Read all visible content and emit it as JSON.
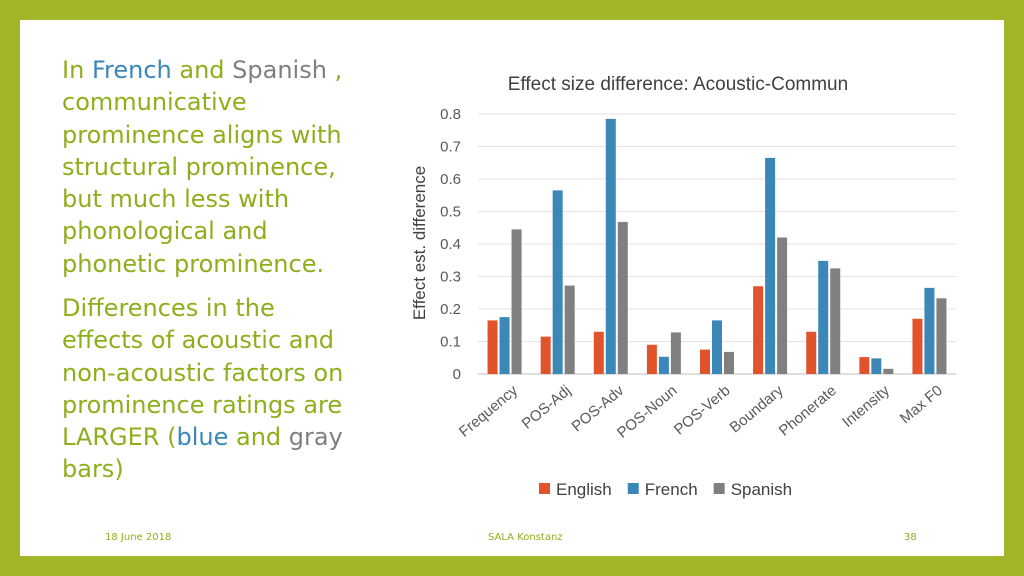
{
  "text": {
    "p1_in": "In",
    "p1_french": "French",
    "p1_and": "and",
    "p1_spanish": "Spanish",
    "p1_comma": ",",
    "p1_rest": "communicative prominence aligns with structural prominence, but much less with phonological and phonetic prominence.",
    "p2_main": "Differences in the effects of acoustic and non-acoustic factors on prominence ratings are LARGER (",
    "p2_blue": "blue",
    "p2_and": "and",
    "p2_gray": "gray",
    "p2_end": "bars)"
  },
  "footer": {
    "date": "18 June  2018",
    "center": "SALA Konstanz",
    "page": "38"
  },
  "colors": {
    "slide_border": "#a2b627",
    "text_green": "#8fae1b",
    "english": "#e0532b",
    "french": "#3a87b8",
    "spanish": "#808080"
  },
  "chart_data": {
    "type": "bar",
    "title": "Effect size difference: Acoustic-Commun",
    "xlabel": "",
    "ylabel": "Effect est. difference",
    "ylim": [
      0,
      0.8
    ],
    "yticks": [
      "0",
      "0.1",
      "0.2",
      "0.3",
      "0.4",
      "0.5",
      "0.6",
      "0.7",
      "0.8"
    ],
    "grid": true,
    "legend_position": "bottom",
    "categories": [
      "Frequency",
      "POS-Adj",
      "POS-Adv",
      "POS-Noun",
      "POS-Verb",
      "Boundary",
      "Phonerate",
      "Intensity",
      "Max F0"
    ],
    "series": [
      {
        "name": "English",
        "color": "#e0532b",
        "values": [
          0.165,
          0.115,
          0.13,
          0.09,
          0.075,
          0.27,
          0.13,
          0.052,
          0.17
        ]
      },
      {
        "name": "French",
        "color": "#3a87b8",
        "values": [
          0.175,
          0.565,
          0.785,
          0.053,
          0.165,
          0.665,
          0.348,
          0.048,
          0.265
        ]
      },
      {
        "name": "Spanish",
        "color": "#808080",
        "values": [
          0.445,
          0.272,
          0.468,
          0.128,
          0.068,
          0.42,
          0.325,
          0.016,
          0.233
        ]
      }
    ]
  }
}
